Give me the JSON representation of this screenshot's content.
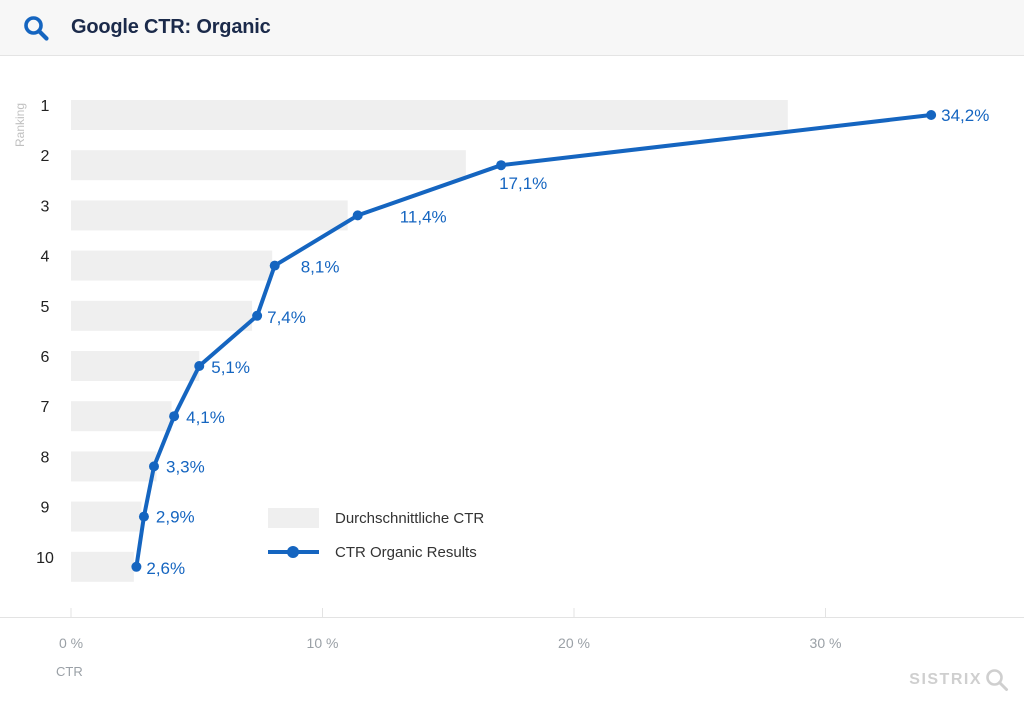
{
  "header": {
    "title": "Google CTR: Organic",
    "icon": "search-icon"
  },
  "brand": {
    "name": "SISTRIX"
  },
  "colors": {
    "accent": "#1565c0",
    "bar": "#efefef",
    "axis_text": "#9aa0a6",
    "title": "#1b2a4a"
  },
  "chart_data": {
    "type": "bar",
    "orientation": "horizontal",
    "ylabel": "Ranking",
    "xlabel": "CTR",
    "categories": [
      "1",
      "2",
      "3",
      "4",
      "5",
      "6",
      "7",
      "8",
      "9",
      "10"
    ],
    "x_ticks": [
      "0 %",
      "10 %",
      "20 %",
      "30 %"
    ],
    "xlim": [
      0,
      37
    ],
    "grid": false,
    "legend": "bottom-center",
    "series": [
      {
        "name": "Durchschnittliche CTR",
        "type": "bar",
        "values": [
          28.5,
          15.7,
          11.0,
          8.0,
          7.2,
          5.1,
          4.0,
          3.4,
          2.8,
          2.5
        ]
      },
      {
        "name": "CTR Organic Results",
        "type": "line",
        "values": [
          34.2,
          17.1,
          11.4,
          8.1,
          7.4,
          5.1,
          4.1,
          3.3,
          2.9,
          2.6
        ],
        "labels": [
          "34,2%",
          "17,1%",
          "11,4%",
          "8,1%",
          "7,4%",
          "5,1%",
          "4,1%",
          "3,3%",
          "2,9%",
          "2,6%"
        ]
      }
    ]
  }
}
